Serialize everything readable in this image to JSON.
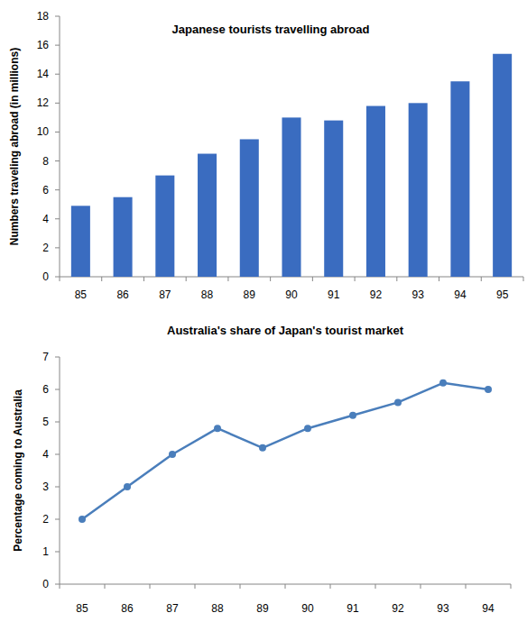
{
  "chart_data": [
    {
      "type": "bar",
      "title": "Japanese tourists travelling abroad",
      "ylabel": "Numbers traveling abroad (in millions)",
      "categories": [
        "85",
        "86",
        "87",
        "88",
        "89",
        "90",
        "91",
        "92",
        "93",
        "94",
        "95"
      ],
      "values": [
        4.9,
        5.5,
        7,
        8.5,
        9.5,
        11,
        10.8,
        11.8,
        12,
        13.5,
        15.4
      ],
      "color": "#3a6cc0",
      "ylim": [
        0,
        18
      ],
      "yticks": [
        0,
        2,
        4,
        6,
        8,
        10,
        12,
        14,
        16,
        18
      ],
      "grid": false
    },
    {
      "type": "line",
      "title": "Australia's share of Japan's tourist market",
      "ylabel": "Percentage coming  to Australia",
      "categories": [
        "85",
        "86",
        "87",
        "88",
        "89",
        "90",
        "91",
        "92",
        "93",
        "94"
      ],
      "values": [
        2,
        3,
        4,
        4.8,
        4.2,
        4.8,
        5.2,
        5.6,
        6.2,
        6.0
      ],
      "color": "#4a7ebb",
      "marker": "circle",
      "ylim": [
        0,
        7
      ],
      "yticks": [
        0,
        1,
        2,
        3,
        4,
        5,
        6,
        7
      ],
      "grid": false
    }
  ]
}
